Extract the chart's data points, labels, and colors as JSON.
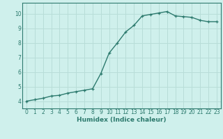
{
  "x": [
    0,
    1,
    2,
    3,
    4,
    5,
    6,
    7,
    8,
    9,
    10,
    11,
    12,
    13,
    14,
    15,
    16,
    17,
    18,
    19,
    20,
    21,
    22,
    23
  ],
  "y": [
    4.0,
    4.1,
    4.2,
    4.35,
    4.4,
    4.55,
    4.65,
    4.75,
    4.85,
    5.9,
    7.3,
    8.0,
    8.75,
    9.2,
    9.85,
    9.95,
    10.05,
    10.15,
    9.85,
    9.8,
    9.75,
    9.55,
    9.45,
    9.45
  ],
  "line_color": "#2d7a6e",
  "bg_color": "#cff0ec",
  "grid_color": "#b8ddd8",
  "xlabel": "Humidex (Indice chaleur)",
  "xlim": [
    -0.5,
    23.5
  ],
  "ylim": [
    3.5,
    10.75
  ],
  "yticks": [
    4,
    5,
    6,
    7,
    8,
    9,
    10
  ],
  "xticks": [
    0,
    1,
    2,
    3,
    4,
    5,
    6,
    7,
    8,
    9,
    10,
    11,
    12,
    13,
    14,
    15,
    16,
    17,
    18,
    19,
    20,
    21,
    22,
    23
  ],
  "marker": "+",
  "linewidth": 1.0,
  "markersize": 3.5,
  "xlabel_fontsize": 6.5,
  "tick_fontsize": 5.5
}
